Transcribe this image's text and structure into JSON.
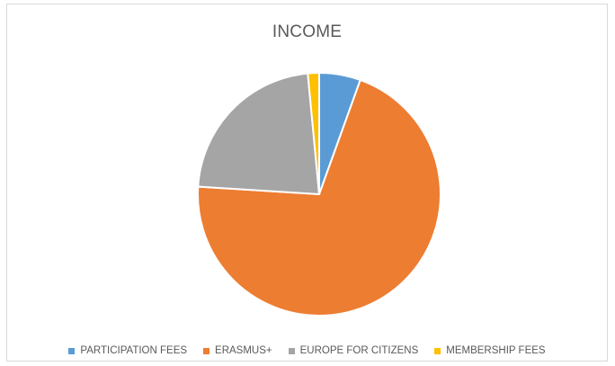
{
  "chart_data": {
    "type": "pie",
    "title": "INCOME",
    "categories": [
      "PARTICIPATION FEES",
      "ERASMUS+",
      "EUROPE FOR CITIZENS",
      "MEMBERSHIP FEES"
    ],
    "values": [
      5.5,
      70.5,
      22.5,
      1.5
    ],
    "unit": "percent (estimated)",
    "colors": [
      "#5b9bd5",
      "#ed7d31",
      "#a5a5a5",
      "#ffc000"
    ],
    "legend_position": "bottom",
    "start_angle_deg": 0,
    "direction": "clockwise"
  }
}
